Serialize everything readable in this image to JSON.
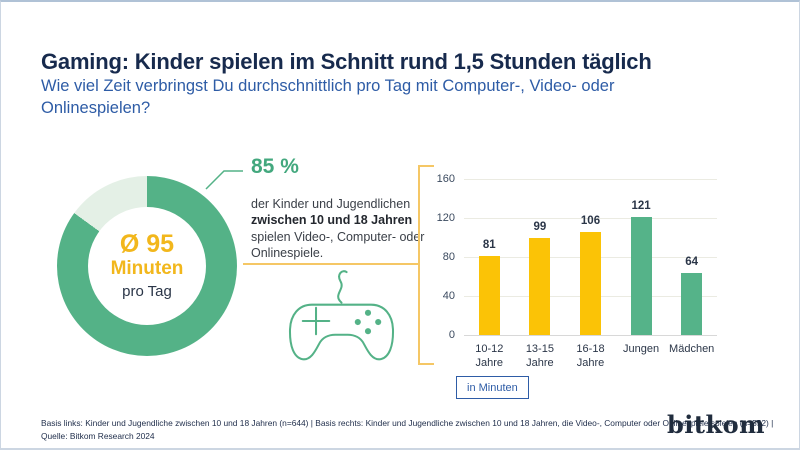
{
  "header": {
    "title": "Gaming: Kinder spielen im Schnitt rund 1,5 Stunden täglich",
    "subtitle": "Wie viel Zeit verbringst Du durchschnittlich pro Tag mit Computer-, Video- oder Onlinespielen?"
  },
  "donut": {
    "percent": 85,
    "value_label": "Ø 95",
    "unit_label": "Minuten",
    "sub_label": "pro Tag",
    "callout": {
      "value": "85 %",
      "text_before": "der Kinder und Jugendlichen ",
      "text_bold": "zwischen 10 und 18 Jahren ",
      "text_after": "spielen Video-, Computer- oder Onlinespiele."
    }
  },
  "icons": {
    "controller": "game-controller-icon"
  },
  "chart_data": {
    "type": "bar",
    "categories": [
      "10-12 Jahre",
      "13-15 Jahre",
      "16-18 Jahre",
      "Jungen",
      "Mädchen"
    ],
    "values": [
      81,
      99,
      106,
      121,
      64
    ],
    "bar_colors": [
      "#FBC306",
      "#FBC306",
      "#FBC306",
      "#55B389",
      "#55B389"
    ],
    "yticks": [
      0,
      40,
      80,
      120,
      160
    ],
    "ylim": [
      0,
      160
    ],
    "grid": true,
    "value_labels": true,
    "unit_badge": "in Minuten",
    "title": "",
    "xlabel": "",
    "ylabel": ""
  },
  "footer": {
    "basis_line": "Basis links: Kinder und Jugendliche zwischen 10 und 18 Jahren (n=644) | Basis rechts: Kinder und Jugendliche zwischen 10 und 18 Jahren, die Video-, Computer oder Onlinespiele spielen (n=552) |",
    "source_line": "Quelle: Bitkom Research 2024",
    "brand": "bitkom"
  },
  "colors": {
    "green": "#54B287",
    "green_light": "#E4F0E6",
    "green_text": "#43A87E",
    "yellow": "#FBC306",
    "yellow_text": "#F2B71C",
    "line_yellow": "#F5C765",
    "navy": "#172A4D",
    "blue": "#2E5CA6",
    "text_dark": "#2B3648",
    "grid": "#EBEBE2",
    "axis": "#D8D8D8"
  }
}
